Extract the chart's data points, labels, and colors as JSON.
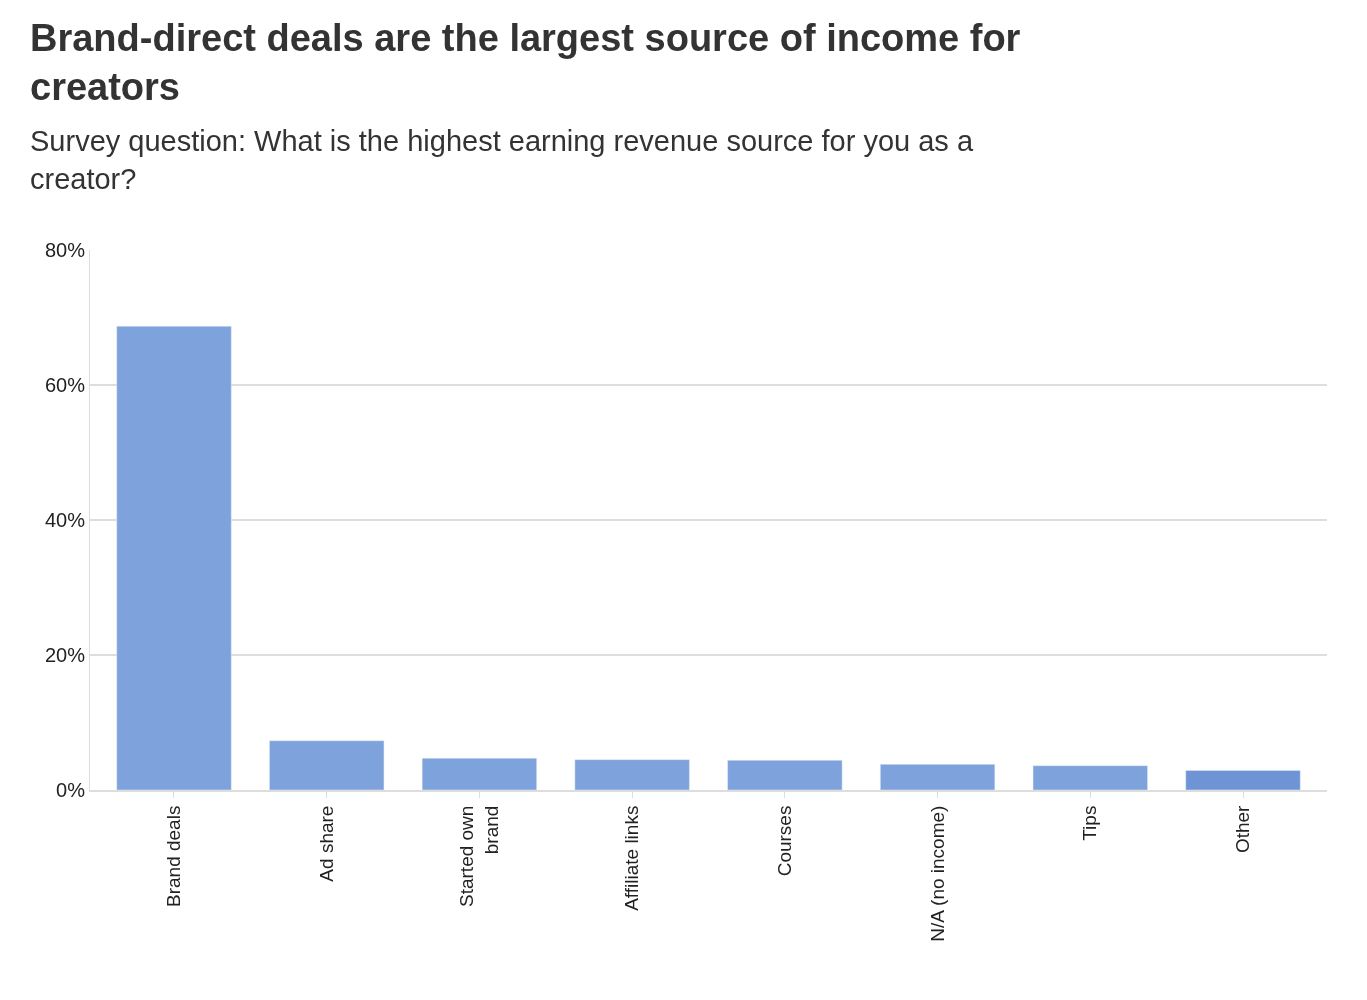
{
  "chart_data": {
    "type": "bar",
    "title": "Brand-direct deals are the largest source of income for creators",
    "subtitle": "Survey question: What is the highest earning revenue source for you as a creator?",
    "categories": [
      "Brand deals",
      "Ad share",
      "Started own brand",
      "Affiliate links",
      "Courses",
      "N/A (no income)",
      "Tips",
      "Other"
    ],
    "values": [
      68.7,
      7.3,
      4.7,
      4.5,
      4.4,
      3.8,
      3.6,
      2.9
    ],
    "colors": [
      "#7ea2db",
      "#7ea2db",
      "#7ea2db",
      "#7ea2db",
      "#7ea2db",
      "#7ea2db",
      "#7ea2db",
      "#6f94d6"
    ],
    "ylim": [
      0,
      80
    ],
    "yticks": [
      {
        "value": 0,
        "label": "0%"
      },
      {
        "value": 20,
        "label": "20%"
      },
      {
        "value": 40,
        "label": "40%"
      },
      {
        "value": 60,
        "label": "60%"
      },
      {
        "value": 80,
        "label": "80%"
      }
    ],
    "grid": "y"
  }
}
